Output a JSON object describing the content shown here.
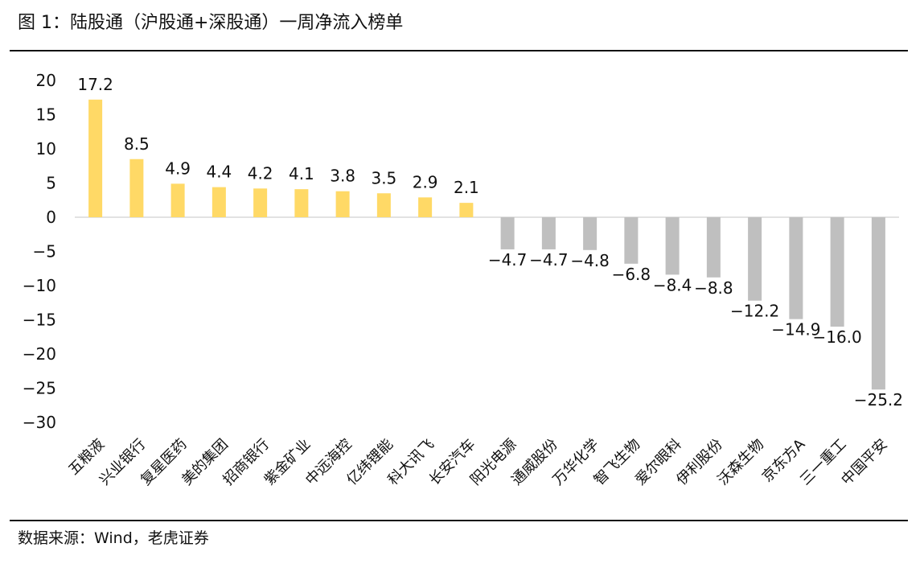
{
  "title": "图 1：陆股通（沪股通+深股通）一周净流入榜单",
  "source": "数据来源：Wind，老虎证券",
  "chart_data": {
    "type": "bar",
    "categories": [
      "五粮液",
      "兴业银行",
      "复星医药",
      "美的集团",
      "招商银行",
      "紫金矿业",
      "中远海控",
      "亿纬锂能",
      "科大讯飞",
      "长安汽车",
      "阳光电源",
      "通威股份",
      "万华化学",
      "智飞生物",
      "爱尔眼科",
      "伊利股份",
      "沃森生物",
      "京东方A",
      "三一重工",
      "中国平安"
    ],
    "values": [
      17.2,
      8.5,
      4.9,
      4.4,
      4.2,
      4.1,
      3.8,
      3.5,
      2.9,
      2.1,
      -4.7,
      -4.7,
      -4.8,
      -6.8,
      -8.4,
      -8.8,
      -12.2,
      -14.9,
      -16.0,
      -25.2
    ],
    "value_labels": [
      "17.2",
      "8.5",
      "4.9",
      "4.4",
      "4.2",
      "4.1",
      "3.8",
      "3.5",
      "2.9",
      "2.1",
      "−4.7",
      "−4.7",
      "−4.8",
      "−6.8",
      "−8.4",
      "−8.8",
      "−12.2",
      "−14.9",
      "−16.0",
      "−25.2"
    ],
    "y_ticks": [
      20,
      15,
      10,
      5,
      0,
      -5,
      -10,
      -15,
      -20,
      -25,
      -30
    ],
    "y_tick_labels": [
      "20",
      "15",
      "10",
      "5",
      "0",
      "−5",
      "−10",
      "−15",
      "−20",
      "−25",
      "−30"
    ],
    "ylim": [
      -30,
      20
    ],
    "grid": false,
    "colors": {
      "positive": "#FFD966",
      "negative": "#BFBFBF",
      "zero_line": "#D9D9D9",
      "text": "#111111"
    }
  }
}
